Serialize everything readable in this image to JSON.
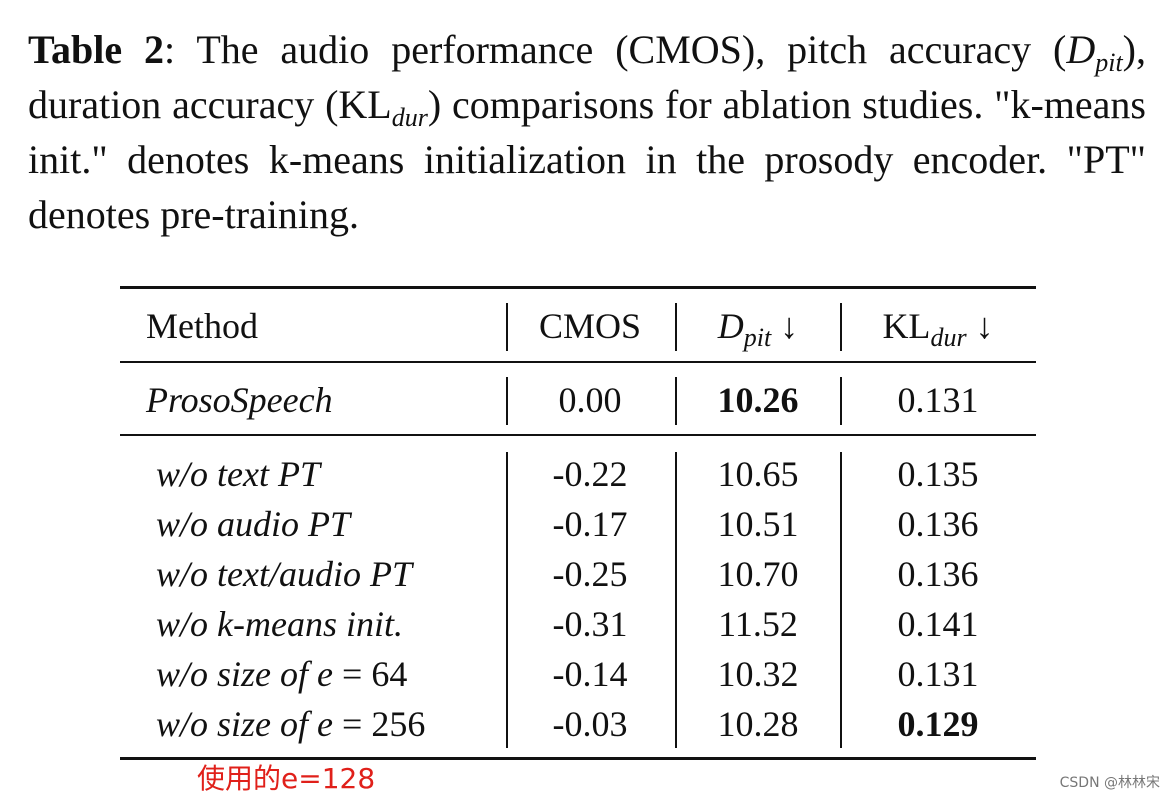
{
  "caption": {
    "label": "Table 2",
    "part1": ":  The audio performance (CMOS), pitch accuracy (",
    "dpit_base": "D",
    "dpit_sub": "pit",
    "part2": "), duration accuracy (KL",
    "kl_sub": "dur",
    "part3": ") comparisons for ablation studies. \"k-means init.\" denotes k-means initialization in the prosody encoder. \"PT\" denotes pre-training."
  },
  "table": {
    "headers": {
      "method": "Method",
      "cmos": "CMOS",
      "dpit_base": "D",
      "dpit_sub": "pit",
      "kl_base": "KL",
      "kl_sub": "dur",
      "arrow": "↓"
    },
    "main_row": {
      "method": "ProsoSpeech",
      "cmos": "0.00",
      "dpit": "10.26",
      "kl": "0.131"
    },
    "ablation_rows": [
      {
        "method": "w/o text PT",
        "cmos": "-0.22",
        "dpit": "10.65",
        "kl": "0.135"
      },
      {
        "method": "w/o audio PT",
        "cmos": "-0.17",
        "dpit": "10.51",
        "kl": "0.136"
      },
      {
        "method": "w/o text/audio PT",
        "cmos": "-0.25",
        "dpit": "10.70",
        "kl": "0.136"
      },
      {
        "method": "w/o k-means init.",
        "cmos": "-0.31",
        "dpit": "11.52",
        "kl": "0.141"
      },
      {
        "method_prefix": "w/o size of ",
        "method_var": "e",
        "method_eq": " = ",
        "method_num": "64",
        "cmos": "-0.14",
        "dpit": "10.32",
        "kl": "0.131"
      },
      {
        "method_prefix": "w/o size of ",
        "method_var": "e",
        "method_eq": " = ",
        "method_num": "256",
        "cmos": "-0.03",
        "dpit": "10.28",
        "kl": "0.129"
      }
    ]
  },
  "annotation": "使用的e=128",
  "watermark": "CSDN @林林宋",
  "colors": {
    "annotation": "#e0201a",
    "text": "#111111"
  }
}
